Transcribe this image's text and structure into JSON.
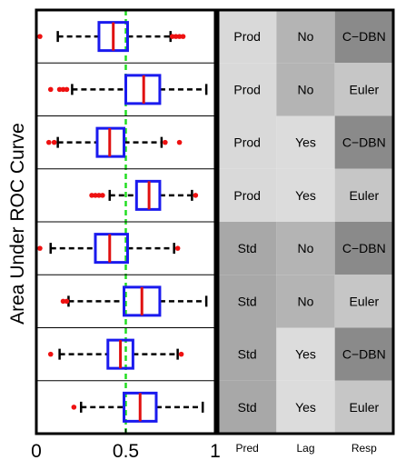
{
  "chart_data": {
    "type": "boxplot",
    "ylabel": "Area Under ROC Curve",
    "xlim": [
      0,
      1
    ],
    "x_ticks": [
      0,
      0.5,
      1
    ],
    "x_tick_labels": [
      "0",
      "0.5",
      "1"
    ],
    "reference_line": {
      "value": 0.5,
      "color": "#22dd22",
      "style": "dashed"
    },
    "grid": false,
    "colors": {
      "box": "#1a1aee",
      "median": "#e01010",
      "whisker": "#000000",
      "outlier": "#ee1111"
    },
    "boxes": [
      {
        "q1": 0.35,
        "median": 0.43,
        "q3": 0.51,
        "whisker_low": 0.12,
        "whisker_high": 0.75,
        "outliers": [
          0.02,
          0.76,
          0.78,
          0.8,
          0.82
        ]
      },
      {
        "q1": 0.5,
        "median": 0.6,
        "q3": 0.69,
        "whisker_low": 0.2,
        "whisker_high": 0.95,
        "outliers": [
          0.08,
          0.13,
          0.15,
          0.17
        ]
      },
      {
        "q1": 0.34,
        "median": 0.41,
        "q3": 0.49,
        "whisker_low": 0.12,
        "whisker_high": 0.7,
        "outliers": [
          0.07,
          0.1,
          0.72,
          0.8
        ]
      },
      {
        "q1": 0.56,
        "median": 0.63,
        "q3": 0.69,
        "whisker_low": 0.41,
        "whisker_high": 0.87,
        "outliers": [
          0.31,
          0.33,
          0.35,
          0.37,
          0.89
        ]
      },
      {
        "q1": 0.33,
        "median": 0.41,
        "q3": 0.51,
        "whisker_low": 0.08,
        "whisker_high": 0.77,
        "outliers": [
          0.02,
          0.79
        ]
      },
      {
        "q1": 0.49,
        "median": 0.59,
        "q3": 0.69,
        "whisker_low": 0.18,
        "whisker_high": 0.95,
        "outliers": [
          0.15,
          0.17
        ]
      },
      {
        "q1": 0.4,
        "median": 0.47,
        "q3": 0.54,
        "whisker_low": 0.13,
        "whisker_high": 0.79,
        "outliers": [
          0.08,
          0.81
        ]
      },
      {
        "q1": 0.49,
        "median": 0.58,
        "q3": 0.67,
        "whisker_low": 0.25,
        "whisker_high": 0.93,
        "outliers": [
          0.21
        ]
      }
    ],
    "table": {
      "columns": [
        "Pred",
        "Lag",
        "Resp"
      ],
      "rows": [
        [
          "Prod",
          "No",
          "C−DBN"
        ],
        [
          "Prod",
          "No",
          "Euler"
        ],
        [
          "Prod",
          "Yes",
          "C−DBN"
        ],
        [
          "Prod",
          "Yes",
          "Euler"
        ],
        [
          "Std",
          "No",
          "C−DBN"
        ],
        [
          "Std",
          "No",
          "Euler"
        ],
        [
          "Std",
          "Yes",
          "C−DBN"
        ],
        [
          "Std",
          "Yes",
          "Euler"
        ]
      ],
      "cell_colors": {
        "Prod": "#d9d9d9",
        "Std": "#a8a8a8",
        "No": "#b4b4b4",
        "Yes": "#dcdcdc",
        "C−DBN": "#8a8a8a",
        "Euler": "#c6c6c6"
      }
    }
  }
}
